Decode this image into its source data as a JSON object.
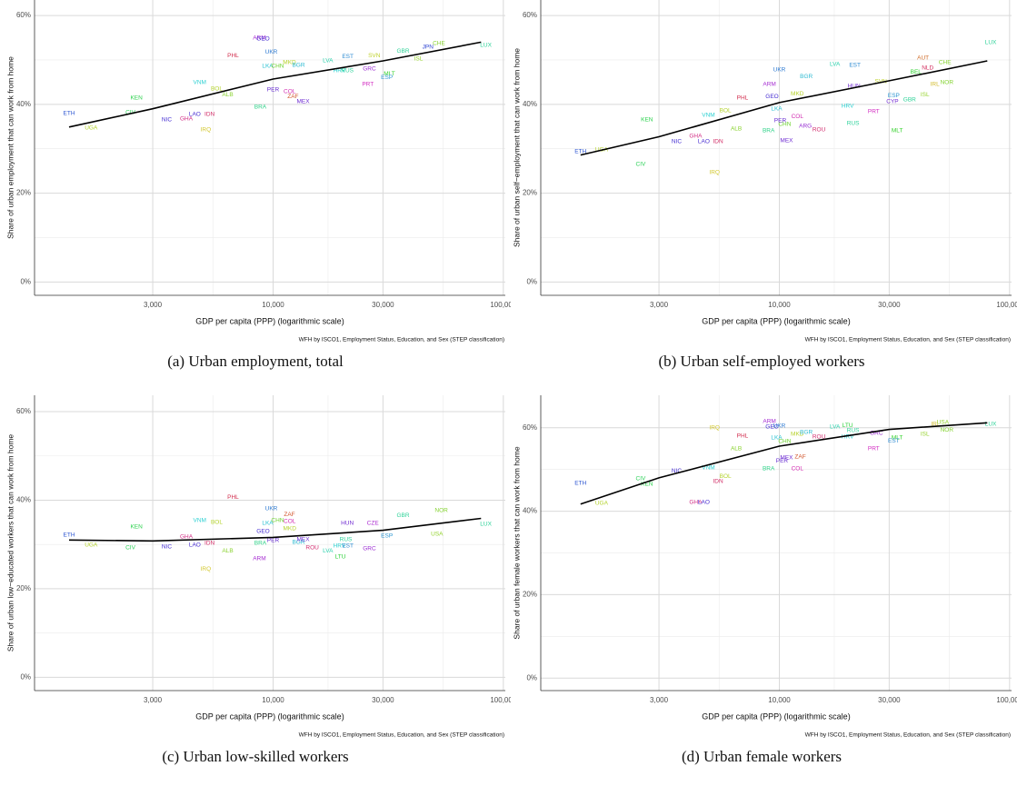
{
  "chart_data": [
    {
      "type": "scatter",
      "subcaption": "(a) Urban employment, total",
      "xlabel": "GDP per capita (PPP) (logarithmic scale)",
      "ylabel": "Share of urban employment that can work from home",
      "caption": "WFH by ISCO1, Employment Status, Education, and Sex (STEP classification)",
      "log_x": true,
      "grid": true,
      "xlim": [
        920,
        102000
      ],
      "ylim": [
        -3,
        63.5
      ],
      "xticks": [
        {
          "value": 3000,
          "label": "3,000"
        },
        {
          "value": 10000,
          "label": "10,000"
        },
        {
          "value": 30000,
          "label": "30,000"
        },
        {
          "value": 100000,
          "label": "100,000"
        }
      ],
      "yticks": [
        {
          "value": 0,
          "label": "0%"
        },
        {
          "value": 20,
          "label": "20%"
        },
        {
          "value": 40,
          "label": "40%"
        },
        {
          "value": 60,
          "label": "60%"
        }
      ],
      "labels": [
        "ETH",
        "KEN",
        "UGA",
        "CIV",
        "NIC",
        "GHA",
        "LAO",
        "IDN",
        "IRQ",
        "VNM",
        "BOL",
        "ALB",
        "PHL",
        "ARM",
        "GEO",
        "UKR",
        "LKA",
        "CHN",
        "MKD",
        "BGR",
        "PER",
        "COL",
        "ZAF",
        "MEX",
        "BRA",
        "LVA",
        "HRV",
        "EST",
        "RUS",
        "SVN",
        "GRC",
        "PRT",
        "MLT",
        "ESP",
        "GBR",
        "ISL",
        "JPN",
        "CHE",
        "LUX"
      ],
      "x": [
        1300,
        2550,
        1620,
        2400,
        3450,
        4200,
        4570,
        5300,
        5100,
        4800,
        5690,
        6350,
        6700,
        8720,
        9050,
        9820,
        9470,
        10460,
        11780,
        12900,
        10000,
        11800,
        12200,
        13500,
        8800,
        17300,
        19400,
        21100,
        21000,
        27500,
        26200,
        25800,
        32000,
        31200,
        36700,
        42800,
        47000,
        52500,
        84000
      ],
      "values": [
        38.0,
        41.4,
        34.7,
        38.2,
        36.5,
        36.7,
        37.8,
        37.8,
        34.3,
        44.9,
        43.5,
        42.2,
        51.0,
        54.9,
        54.7,
        51.8,
        48.6,
        48.6,
        49.4,
        48.8,
        43.3,
        42.9,
        41.8,
        40.6,
        39.4,
        49.8,
        47.6,
        50.8,
        47.6,
        51.0,
        48.0,
        44.5,
        46.9,
        46.1,
        52.0,
        50.2,
        52.9,
        53.7,
        53.3
      ],
      "fit": {
        "color": "#000000",
        "x": [
          1300,
          3000,
          10000,
          30000,
          80000
        ],
        "values": [
          34.9,
          39.0,
          45.7,
          49.8,
          54.0
        ]
      }
    },
    {
      "type": "scatter",
      "subcaption": "(b) Urban self-employed workers",
      "xlabel": "GDP per capita (PPP) (logarithmic scale)",
      "ylabel": "Share of urban self−employment that can work from home",
      "caption": "WFH by ISCO1, Employment Status, Education, and Sex (STEP classification)",
      "log_x": true,
      "grid": true,
      "xlim": [
        920,
        102000
      ],
      "ylim": [
        -3,
        63.5
      ],
      "xticks": [
        {
          "value": 3000,
          "label": "3,000"
        },
        {
          "value": 10000,
          "label": "10,000"
        },
        {
          "value": 30000,
          "label": "30,000"
        },
        {
          "value": 100000,
          "label": "100,000"
        }
      ],
      "yticks": [
        {
          "value": 0,
          "label": "0%"
        },
        {
          "value": 20,
          "label": "20%"
        },
        {
          "value": 40,
          "label": "40%"
        },
        {
          "value": 60,
          "label": "60%"
        }
      ],
      "labels": [
        "ETH",
        "UGA",
        "KEN",
        "CIV",
        "NIC",
        "GHA",
        "LAO",
        "IDN",
        "IRQ",
        "VNM",
        "BOL",
        "ALB",
        "PHL",
        "ARM",
        "UKR",
        "GEO",
        "BGR",
        "MKD",
        "LKA",
        "CHN",
        "PER",
        "COL",
        "BRA",
        "ARG",
        "ROU",
        "MEX",
        "LVA",
        "EST",
        "HRV",
        "HUN",
        "RUS",
        "PRT",
        "SVN",
        "ESP",
        "CYP",
        "GBR",
        "MLT",
        "AUT",
        "CHE",
        "BEL",
        "NLD",
        "IRL",
        "ISL",
        "NOR",
        "LUX"
      ],
      "x": [
        1370,
        1690,
        2660,
        2500,
        3580,
        4330,
        4700,
        5420,
        5230,
        4920,
        5830,
        6500,
        6920,
        9060,
        10000,
        9300,
        13100,
        11970,
        9730,
        10550,
        10090,
        11970,
        8980,
        12980,
        14860,
        10750,
        17430,
        21300,
        19800,
        21100,
        20900,
        25700,
        27600,
        31400,
        31000,
        36800,
        32500,
        42100,
        52400,
        39200,
        44100,
        47400,
        42900,
        53400,
        82800
      ],
      "values": [
        29.4,
        29.8,
        36.5,
        26.5,
        31.6,
        32.9,
        31.6,
        31.6,
        24.7,
        37.6,
        38.6,
        34.5,
        41.4,
        44.5,
        47.8,
        41.8,
        46.3,
        42.4,
        39.0,
        35.5,
        36.3,
        37.3,
        34.1,
        35.1,
        34.3,
        31.8,
        49.0,
        48.8,
        39.6,
        44.1,
        35.7,
        38.4,
        45.1,
        42.0,
        40.6,
        41.0,
        34.1,
        50.4,
        49.4,
        47.3,
        48.2,
        44.5,
        42.2,
        44.9,
        53.9
      ],
      "fit": {
        "color": "#000000",
        "x": [
          1370,
          3000,
          10000,
          30000,
          80000
        ],
        "values": [
          28.6,
          32.7,
          40.4,
          45.3,
          49.8
        ]
      }
    },
    {
      "type": "scatter",
      "subcaption": "(c) Urban low-skilled workers",
      "xlabel": "GDP per capita (PPP) (logarithmic scale)",
      "ylabel": "Share of urban low−educated workers that can work from home",
      "caption": "WFH by ISCO1, Employment Status, Education, and Sex (STEP classification)",
      "log_x": true,
      "grid": true,
      "xlim": [
        920,
        102000
      ],
      "ylim": [
        -3,
        63.7
      ],
      "xticks": [
        {
          "value": 3000,
          "label": "3,000"
        },
        {
          "value": 10000,
          "label": "10,000"
        },
        {
          "value": 30000,
          "label": "30,000"
        },
        {
          "value": 100000,
          "label": "100,000"
        }
      ],
      "yticks": [
        {
          "value": 0,
          "label": "0%"
        },
        {
          "value": 20,
          "label": "20%"
        },
        {
          "value": 40,
          "label": "40%"
        },
        {
          "value": 60,
          "label": "60%"
        }
      ],
      "labels": [
        "ETH",
        "KEN",
        "UGA",
        "CIV",
        "NIC",
        "GHA",
        "LAO",
        "IDN",
        "IRQ",
        "VNM",
        "BOL",
        "ALB",
        "PHL",
        "ARM",
        "GEO",
        "UKR",
        "LKA",
        "CHN",
        "ZAF",
        "COL",
        "MKD",
        "PER",
        "BRA",
        "BGR",
        "MEX",
        "ROU",
        "RUS",
        "LVA",
        "LTU",
        "HRV",
        "EST",
        "HUN",
        "GRC",
        "CZE",
        "ESP",
        "GBR",
        "USA",
        "NOR",
        "LUX"
      ],
      "x": [
        1300,
        2550,
        1620,
        2400,
        3450,
        4200,
        4570,
        5300,
        5100,
        4800,
        5690,
        6350,
        6700,
        8720,
        9050,
        9820,
        9470,
        10460,
        11780,
        11800,
        11800,
        10000,
        8800,
        12900,
        13500,
        14800,
        20700,
        17300,
        19600,
        19400,
        21100,
        21000,
        26200,
        27100,
        31200,
        36700,
        51500,
        53800,
        84000
      ],
      "values": [
        32.1,
        34.0,
        29.9,
        29.3,
        29.5,
        31.7,
        29.9,
        30.3,
        24.4,
        35.4,
        35.0,
        28.5,
        40.7,
        26.8,
        33.0,
        38.1,
        34.8,
        35.4,
        36.8,
        35.2,
        33.6,
        30.9,
        30.3,
        30.5,
        31.1,
        29.3,
        31.1,
        28.5,
        27.2,
        29.7,
        29.7,
        34.8,
        29.1,
        34.8,
        31.9,
        36.6,
        32.3,
        37.7,
        34.6
      ],
      "fit": {
        "color": "#000000",
        "x": [
          1300,
          3000,
          10000,
          30000,
          80000
        ],
        "values": [
          31.0,
          30.8,
          31.6,
          33.2,
          35.9
        ]
      }
    },
    {
      "type": "scatter",
      "subcaption": "(d) Urban female workers",
      "xlabel": "GDP per capita (PPP) (logarithmic scale)",
      "ylabel": "Share of urban female workers that can work from home",
      "caption": "WFH by ISCO1, Employment Status, Education, and Sex (STEP classification)",
      "log_x": true,
      "grid": true,
      "xlim": [
        920,
        102000
      ],
      "ylim": [
        -3,
        67.8
      ],
      "xticks": [
        {
          "value": 3000,
          "label": "3,000"
        },
        {
          "value": 10000,
          "label": "10,000"
        },
        {
          "value": 30000,
          "label": "30,000"
        },
        {
          "value": 100000,
          "label": "100,000"
        }
      ],
      "yticks": [
        {
          "value": 0,
          "label": "0%"
        },
        {
          "value": 20,
          "label": "20%"
        },
        {
          "value": 40,
          "label": "40%"
        },
        {
          "value": 60,
          "label": "60%"
        }
      ],
      "labels": [
        "ETH",
        "UGA",
        "KEN",
        "CIV",
        "NIC",
        "GHA",
        "LAO",
        "IDN",
        "IRQ",
        "VNM",
        "BOL",
        "ALB",
        "PHL",
        "ARM",
        "GEO",
        "UKR",
        "LKA",
        "CHN",
        "MKD",
        "BGR",
        "ROU",
        "PER",
        "ZAF",
        "MEX",
        "COL",
        "BRA",
        "LVA",
        "LTU",
        "HRV",
        "RUS",
        "PRT",
        "MLT",
        "EST",
        "GRC",
        "ISL",
        "IRL",
        "USA",
        "NOR",
        "LUX"
      ],
      "x": [
        1370,
        1690,
        2660,
        2500,
        3580,
        4330,
        4700,
        5420,
        5230,
        4920,
        5830,
        6500,
        6920,
        9060,
        9300,
        10000,
        9730,
        10550,
        11970,
        13100,
        14860,
        10270,
        12330,
        10750,
        11970,
        8980,
        17430,
        19800,
        19800,
        20900,
        25700,
        32500,
        31400,
        26400,
        42900,
        47700,
        51300,
        53400,
        82800
      ],
      "values": [
        46.7,
        41.9,
        46.5,
        47.8,
        49.7,
        42.1,
        42.1,
        47.1,
        60.0,
        50.4,
        48.4,
        55.0,
        58.0,
        61.5,
        60.2,
        60.4,
        57.6,
        56.7,
        58.5,
        58.9,
        57.8,
        52.1,
        53.0,
        52.8,
        50.2,
        50.2,
        60.2,
        60.6,
        57.8,
        59.3,
        55.0,
        57.6,
        56.9,
        58.7,
        58.5,
        60.9,
        61.3,
        59.5,
        60.9
      ],
      "fit": {
        "color": "#000000",
        "x": [
          1370,
          3000,
          10000,
          30000,
          80000
        ],
        "values": [
          41.7,
          48.0,
          55.6,
          59.6,
          61.2
        ]
      }
    }
  ]
}
